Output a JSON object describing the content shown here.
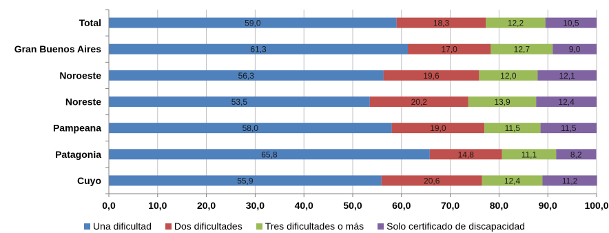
{
  "chart_data": {
    "type": "bar",
    "orientation": "horizontal",
    "stacked": true,
    "categories": [
      "Total",
      "Gran Buenos Aires",
      "Noroeste",
      "Noreste",
      "Pampeana",
      "Patagonia",
      "Cuyo"
    ],
    "series": [
      {
        "name": "Una dificultad",
        "color": "#4f81bd",
        "values": [
          59.0,
          61.3,
          56.3,
          53.5,
          58.0,
          65.8,
          55.9
        ],
        "labels": [
          "59,0",
          "61,3",
          "56,3",
          "53,5",
          "58,0",
          "65,8",
          "55,9"
        ]
      },
      {
        "name": "Dos dificultades",
        "color": "#c0504d",
        "values": [
          18.3,
          17.0,
          19.6,
          20.2,
          19.0,
          14.8,
          20.6
        ],
        "labels": [
          "18,3",
          "17,0",
          "19,6",
          "20,2",
          "19,0",
          "14,8",
          "20,6"
        ]
      },
      {
        "name": "Tres dificultades o más",
        "color": "#9bbb59",
        "values": [
          12.2,
          12.7,
          12.0,
          13.9,
          11.5,
          11.1,
          12.4
        ],
        "labels": [
          "12,2",
          "12,7",
          "12,0",
          "13,9",
          "11,5",
          "11,1",
          "12,4"
        ]
      },
      {
        "name": "Solo certificado de discapacidad",
        "color": "#8064a2",
        "values": [
          10.5,
          9.0,
          12.1,
          12.4,
          11.5,
          8.2,
          11.2
        ],
        "labels": [
          "10,5",
          "9,0",
          "12,1",
          "12,4",
          "11,5",
          "8,2",
          "11,2"
        ]
      }
    ],
    "xlim": [
      0,
      100
    ],
    "xticks": [
      "0,0",
      "10,0",
      "20,0",
      "30,0",
      "40,0",
      "50,0",
      "60,0",
      "70,0",
      "80,0",
      "90,0",
      "100,0"
    ],
    "grid": true,
    "legend_position": "bottom"
  }
}
